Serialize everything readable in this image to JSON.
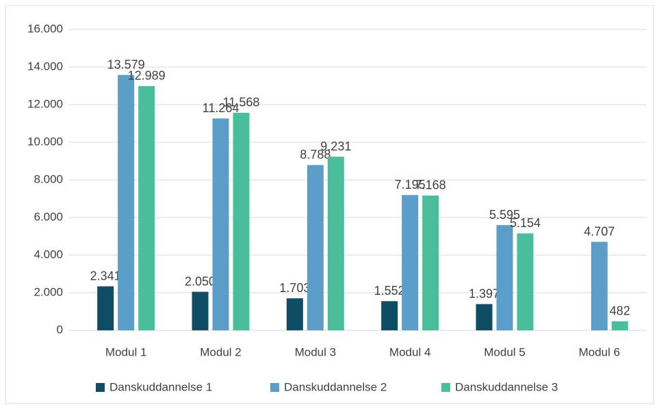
{
  "chart_data": {
    "type": "bar",
    "categories": [
      "Modul 1",
      "Modul 2",
      "Modul 3",
      "Modul 4",
      "Modul 5",
      "Modul 6"
    ],
    "series": [
      {
        "name": "Danskuddannelse 1",
        "color": "#0e4d64",
        "values": [
          2341,
          2050,
          1703,
          1552,
          1397,
          null
        ],
        "value_labels": [
          "2.341",
          "2.050",
          "1.703",
          "1.552",
          "1.397",
          null
        ]
      },
      {
        "name": "Danskuddannelse 2",
        "color": "#5b9ec9",
        "values": [
          13579,
          11264,
          8788,
          7195,
          5595,
          4707
        ],
        "value_labels": [
          "13.579",
          "11.264",
          "8.788",
          "7.195",
          "5.595",
          "4.707"
        ]
      },
      {
        "name": "Danskuddannelse 3",
        "color": "#49bf9c",
        "values": [
          12989,
          11568,
          9231,
          7168,
          5154,
          482
        ],
        "value_labels": [
          "12.989",
          "11.568",
          "9.231",
          "7.168",
          "5.154",
          "482"
        ]
      }
    ],
    "ylim": [
      0,
      16000
    ],
    "yticks": [
      0,
      {
        "value": 2000,
        "label": "2.000"
      },
      {
        "value": 4000,
        "label": "4.000"
      },
      {
        "value": 6000,
        "label": "6.000"
      },
      {
        "value": 8000,
        "label": "8.000"
      },
      {
        "value": 10000,
        "label": "10.000"
      },
      {
        "value": 12000,
        "label": "12.000"
      },
      {
        "value": 14000,
        "label": "14.000"
      },
      {
        "value": 16000,
        "label": "16.000"
      }
    ],
    "grid": true,
    "legend": "bottom"
  }
}
